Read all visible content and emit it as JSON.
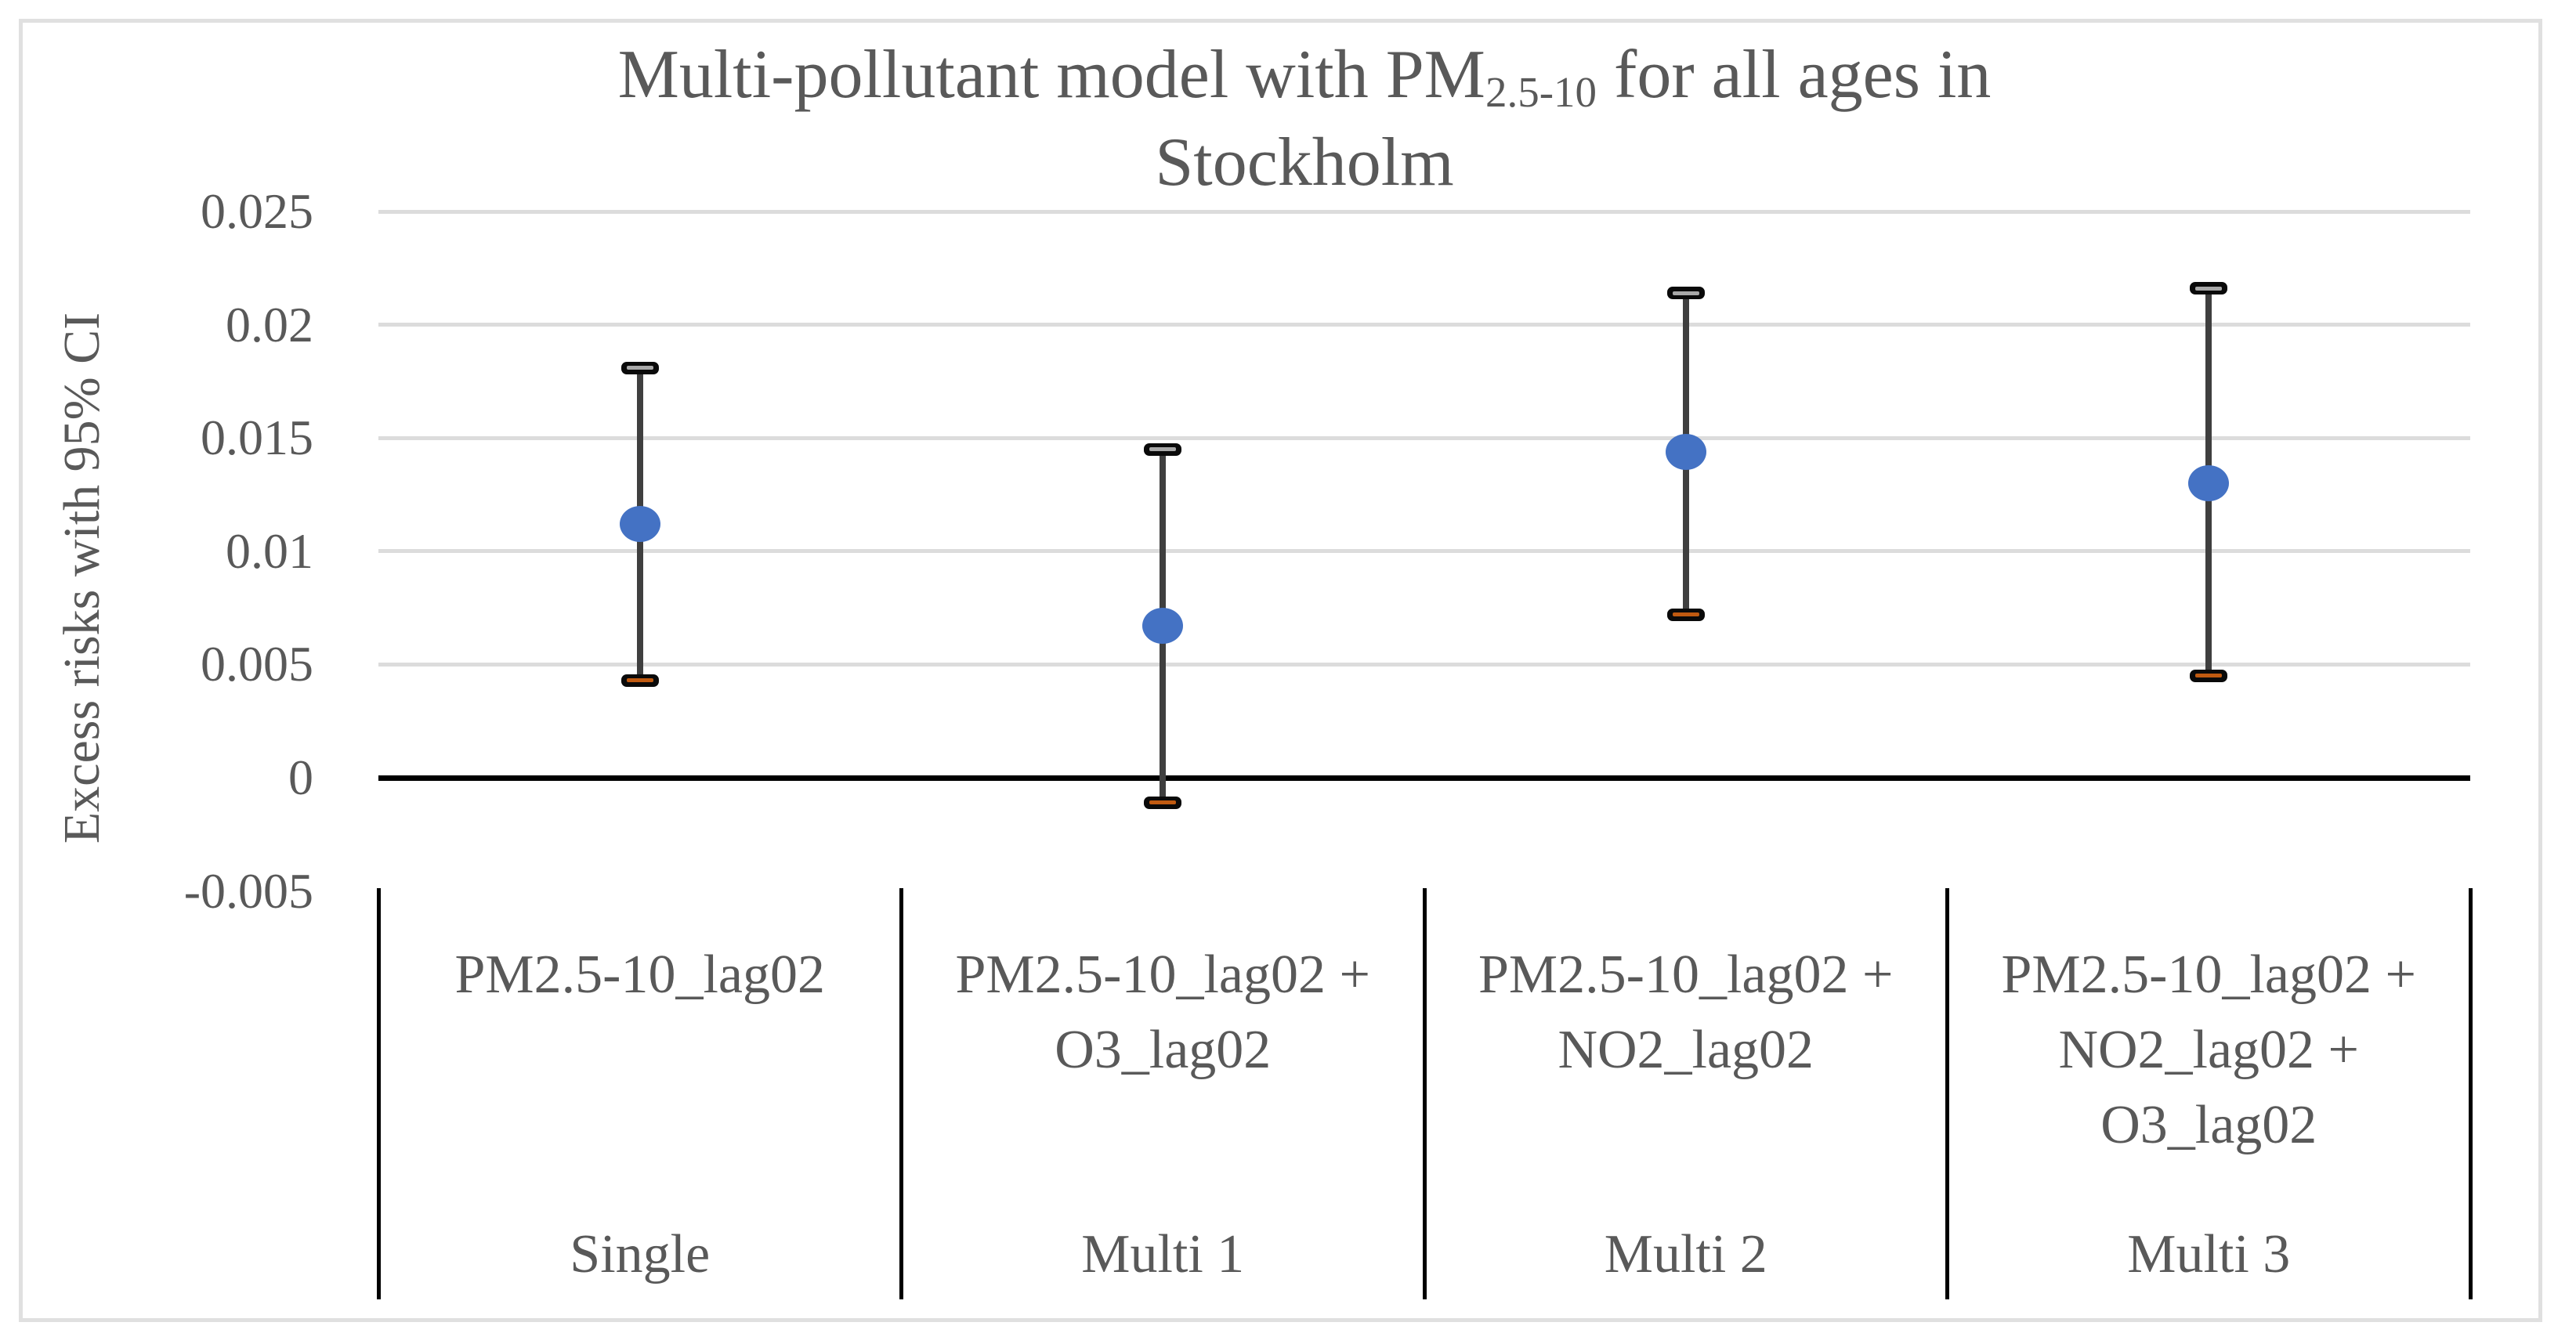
{
  "title": {
    "full": "Multi-pollutant model with PM2.5-10 for all ages in Stockholm",
    "line1_prefix": "Multi-pollutant model with PM",
    "line1_sub": "2.5-10",
    "line1_suffix": " for all ages in",
    "line2": "Stockholm"
  },
  "chart_data": {
    "type": "scatter",
    "title": "Multi-pollutant model with PM2.5-10 for all ages in Stockholm",
    "xlabel": "",
    "ylabel": "Excess risks with 95% CI",
    "ylim": [
      -0.005,
      0.025
    ],
    "ytick_step": 0.005,
    "grid": true,
    "legend": "none",
    "yticks": [
      {
        "label": "0.025",
        "value": 0.025
      },
      {
        "label": "0.02",
        "value": 0.02
      },
      {
        "label": "0.015",
        "value": 0.015
      },
      {
        "label": "0.01",
        "value": 0.01
      },
      {
        "label": "0.005",
        "value": 0.005
      },
      {
        "label": "0",
        "value": 0
      },
      {
        "label": "-0.005",
        "value": -0.005
      }
    ],
    "categories": [
      {
        "pollutants": "PM2.5-10_lag02",
        "lines": [
          "PM2.5-10_lag02"
        ],
        "model": "Single",
        "value": 0.0112,
        "ci_low": 0.0043,
        "ci_high": 0.0181
      },
      {
        "pollutants": "PM2.5-10_lag02 + O3_lag02",
        "lines": [
          "PM2.5-10_lag02 +",
          "O3_lag02"
        ],
        "model": "Multi 1",
        "value": 0.0067,
        "ci_low": -0.0011,
        "ci_high": 0.0145
      },
      {
        "pollutants": "PM2.5-10_lag02 + NO2_lag02",
        "lines": [
          "PM2.5-10_lag02 +",
          "NO2_lag02"
        ],
        "model": "Multi 2",
        "value": 0.0144,
        "ci_low": 0.0072,
        "ci_high": 0.0214
      },
      {
        "pollutants": "PM2.5-10_lag02 + NO2_lag02 + O3_lag02",
        "lines": [
          "PM2.5-10_lag02 +",
          "NO2_lag02 +",
          "O3_lag02"
        ],
        "model": "Multi 3",
        "value": 0.013,
        "ci_low": 0.0045,
        "ci_high": 0.0216
      }
    ],
    "colors": {
      "marker": "#4472C4",
      "error_bar_stem": "#3F3F3F",
      "error_bar_cap": "#0A0A0A",
      "cap_stripe_top": "#A8A8A8",
      "cap_stripe_bottom": "#C05A11",
      "gridline": "#DCDCDC",
      "zero_axis": "#000000",
      "text": "#595959",
      "frame_border": "#E0E0E0"
    }
  }
}
